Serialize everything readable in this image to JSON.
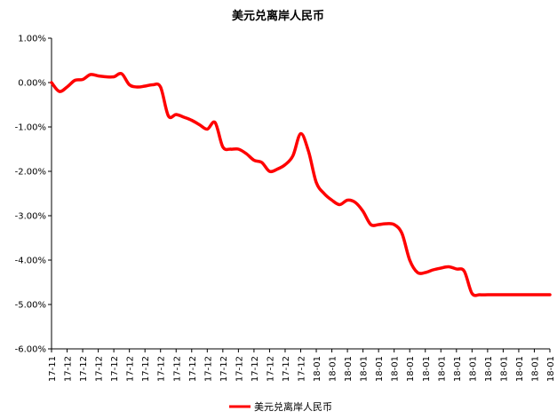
{
  "chart_data": {
    "type": "line",
    "title": "美元兑离岸人民币",
    "legend": {
      "position": "bottom"
    },
    "y_axis": {
      "range": [
        -0.06,
        0.01
      ],
      "ticks": [
        0.01,
        0.0,
        -0.01,
        -0.02,
        -0.03,
        -0.04,
        -0.05,
        -0.06
      ],
      "tick_labels": [
        "1.00%",
        "0.00%",
        "-1.00%",
        "-2.00%",
        "-3.00%",
        "-4.00%",
        "-5.00%",
        "-6.00%"
      ]
    },
    "x_axis": {
      "tick_labels": [
        "17-11",
        "17-12",
        "17-12",
        "17-12",
        "17-12",
        "17-12",
        "17-12",
        "17-12",
        "17-12",
        "17-12",
        "17-12",
        "17-12",
        "17-12",
        "17-12",
        "17-12",
        "17-12",
        "17-12",
        "18-01",
        "18-01",
        "18-01",
        "18-01",
        "18-01",
        "18-01",
        "18-01",
        "18-01",
        "18-01",
        "18-01",
        "18-01",
        "18-01",
        "18-01",
        "18-01",
        "18-01",
        "18-01"
      ]
    },
    "grid": false,
    "series": [
      {
        "name": "美元兑离岸人民币",
        "color": "#ff0000",
        "x": [
          0,
          0.5,
          1,
          1.5,
          2,
          2.5,
          3,
          3.5,
          4,
          4.5,
          5,
          5.5,
          6,
          6.5,
          7,
          7.5,
          8,
          8.5,
          9,
          9.5,
          10,
          10.5,
          11,
          11.5,
          12,
          12.5,
          13,
          13.5,
          14,
          14.5,
          15,
          15.5,
          16,
          16.5,
          17,
          17.5,
          18,
          18.5,
          19,
          19.5,
          20,
          20.5,
          21,
          21.5,
          22,
          22.5,
          23,
          23.5,
          24,
          24.5,
          25,
          25.5,
          26,
          26.5,
          27,
          27.5,
          28,
          28.5,
          29,
          29.5,
          30,
          30.5,
          31,
          31.5,
          32
        ],
        "y": [
          0.0,
          -0.002,
          -0.001,
          0.0005,
          0.0007,
          0.0018,
          0.0015,
          0.0013,
          0.0013,
          0.002,
          -0.0005,
          -0.001,
          -0.0008,
          -0.0005,
          -0.001,
          -0.0075,
          -0.0072,
          -0.0078,
          -0.0085,
          -0.0095,
          -0.0105,
          -0.009,
          -0.0145,
          -0.015,
          -0.015,
          -0.016,
          -0.0175,
          -0.018,
          -0.02,
          -0.0195,
          -0.0185,
          -0.0165,
          -0.0115,
          -0.0155,
          -0.0225,
          -0.025,
          -0.0265,
          -0.0275,
          -0.0265,
          -0.027,
          -0.029,
          -0.032,
          -0.032,
          -0.0318,
          -0.032,
          -0.034,
          -0.04,
          -0.0428,
          -0.0428,
          -0.0422,
          -0.0418,
          -0.0415,
          -0.042,
          -0.0425,
          -0.0475,
          -0.0478,
          -0.0478,
          -0.0478,
          -0.0478,
          -0.0478,
          -0.0478,
          -0.0478,
          -0.0478,
          -0.0478,
          -0.0478
        ]
      }
    ]
  }
}
